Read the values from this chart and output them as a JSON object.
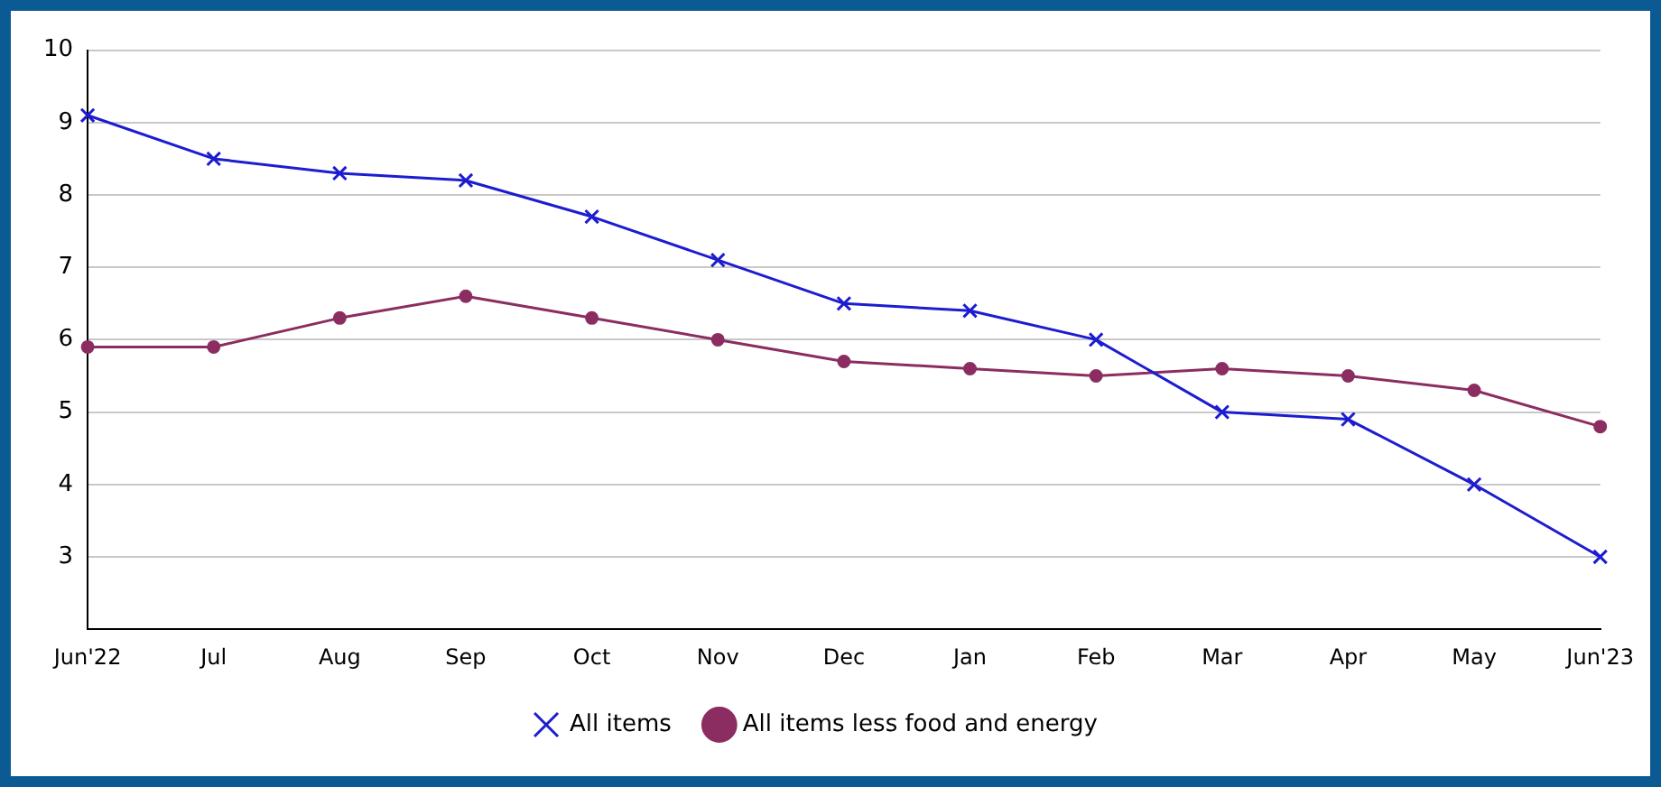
{
  "chart_data": {
    "type": "line",
    "categories": [
      "Jun'22",
      "Jul",
      "Aug",
      "Sep",
      "Oct",
      "Nov",
      "Dec",
      "Jan",
      "Feb",
      "Mar",
      "Apr",
      "May",
      "Jun'23"
    ],
    "series": [
      {
        "name": "All items",
        "color": "#1c1cd0",
        "marker": "cross",
        "values": [
          9.1,
          8.5,
          8.3,
          8.2,
          7.7,
          7.1,
          6.5,
          6.4,
          6.0,
          5.0,
          4.9,
          4.0,
          3.0
        ]
      },
      {
        "name": "All items less food and energy",
        "color": "#8b2d60",
        "marker": "circle",
        "values": [
          5.9,
          5.9,
          6.3,
          6.6,
          6.3,
          6.0,
          5.7,
          5.6,
          5.5,
          5.6,
          5.5,
          5.3,
          4.8
        ]
      }
    ],
    "ylim": [
      2,
      10
    ],
    "yticks": [
      3,
      4,
      5,
      6,
      7,
      8,
      9,
      10
    ],
    "grid": "y",
    "legend": "bottom",
    "line_style": "solid"
  }
}
